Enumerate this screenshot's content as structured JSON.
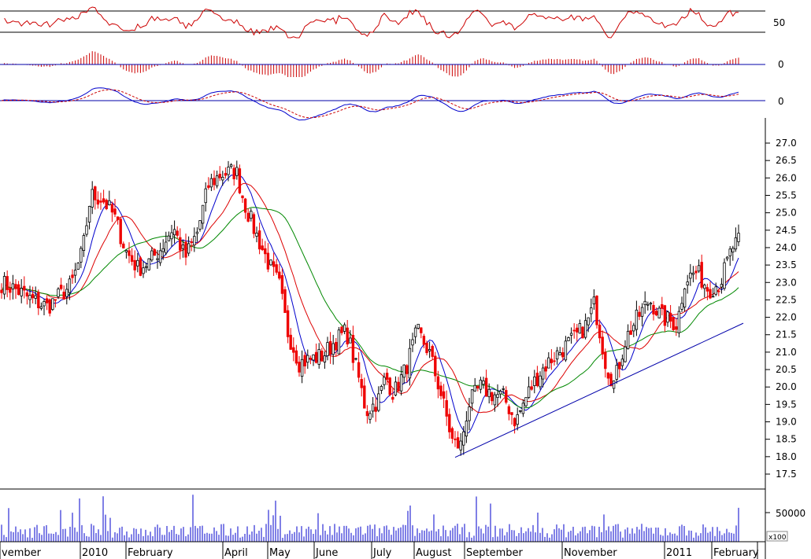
{
  "chart_data": {
    "type": "candlestick",
    "title": "",
    "price_axis": {
      "range": [
        17.2,
        27.4
      ],
      "ticks": [
        "27.0",
        "26.5",
        "26.0",
        "25.5",
        "25.0",
        "24.5",
        "24.0",
        "23.5",
        "23.0",
        "22.5",
        "22.0",
        "21.5",
        "21.0",
        "20.5",
        "20.0",
        "19.5",
        "19.0",
        "18.5",
        "18.0",
        "17.5"
      ]
    },
    "time_axis": {
      "labels": [
        "vember",
        "2010",
        "February",
        "April",
        "May",
        "June",
        "July",
        "August",
        "September",
        "November",
        "2011",
        "February"
      ]
    },
    "price_anchors": [
      {
        "x": 0,
        "y": 23.0
      },
      {
        "x": 20,
        "y": 22.8
      },
      {
        "x": 40,
        "y": 22.5
      },
      {
        "x": 60,
        "y": 22.3
      },
      {
        "x": 75,
        "y": 22.6
      },
      {
        "x": 90,
        "y": 22.9
      },
      {
        "x": 105,
        "y": 23.9
      },
      {
        "x": 115,
        "y": 25.5
      },
      {
        "x": 130,
        "y": 25.4
      },
      {
        "x": 145,
        "y": 24.9
      },
      {
        "x": 160,
        "y": 23.9
      },
      {
        "x": 175,
        "y": 23.4
      },
      {
        "x": 190,
        "y": 23.6
      },
      {
        "x": 205,
        "y": 24.0
      },
      {
        "x": 220,
        "y": 24.6
      },
      {
        "x": 235,
        "y": 23.7
      },
      {
        "x": 250,
        "y": 24.4
      },
      {
        "x": 265,
        "y": 25.8
      },
      {
        "x": 280,
        "y": 26.1
      },
      {
        "x": 300,
        "y": 26.2
      },
      {
        "x": 310,
        "y": 25.3
      },
      {
        "x": 325,
        "y": 24.4
      },
      {
        "x": 340,
        "y": 23.6
      },
      {
        "x": 355,
        "y": 22.9
      },
      {
        "x": 365,
        "y": 21.6
      },
      {
        "x": 380,
        "y": 20.7
      },
      {
        "x": 395,
        "y": 20.8
      },
      {
        "x": 410,
        "y": 20.9
      },
      {
        "x": 425,
        "y": 21.3
      },
      {
        "x": 440,
        "y": 21.6
      },
      {
        "x": 455,
        "y": 20.3
      },
      {
        "x": 465,
        "y": 19.3
      },
      {
        "x": 480,
        "y": 19.6
      },
      {
        "x": 490,
        "y": 20.3
      },
      {
        "x": 500,
        "y": 19.8
      },
      {
        "x": 515,
        "y": 20.5
      },
      {
        "x": 530,
        "y": 21.6
      },
      {
        "x": 545,
        "y": 21.0
      },
      {
        "x": 560,
        "y": 19.8
      },
      {
        "x": 575,
        "y": 18.4
      },
      {
        "x": 585,
        "y": 18.3
      },
      {
        "x": 595,
        "y": 19.5
      },
      {
        "x": 610,
        "y": 20.0
      },
      {
        "x": 625,
        "y": 19.8
      },
      {
        "x": 640,
        "y": 19.7
      },
      {
        "x": 655,
        "y": 19.0
      },
      {
        "x": 670,
        "y": 19.8
      },
      {
        "x": 685,
        "y": 20.4
      },
      {
        "x": 700,
        "y": 20.8
      },
      {
        "x": 715,
        "y": 21.1
      },
      {
        "x": 730,
        "y": 21.4
      },
      {
        "x": 745,
        "y": 21.8
      },
      {
        "x": 755,
        "y": 22.4
      },
      {
        "x": 770,
        "y": 20.6
      },
      {
        "x": 780,
        "y": 20.1
      },
      {
        "x": 795,
        "y": 21.4
      },
      {
        "x": 810,
        "y": 22.0
      },
      {
        "x": 825,
        "y": 22.5
      },
      {
        "x": 840,
        "y": 22.0
      },
      {
        "x": 860,
        "y": 21.8
      },
      {
        "x": 870,
        "y": 23.1
      },
      {
        "x": 885,
        "y": 23.3
      },
      {
        "x": 900,
        "y": 22.8
      },
      {
        "x": 915,
        "y": 23.0
      },
      {
        "x": 930,
        "y": 24.0
      },
      {
        "x": 940,
        "y": 24.2
      }
    ],
    "support_line": {
      "from": {
        "x": 578,
        "y": 17.98
      },
      "to": {
        "x": 944,
        "y": 21.83
      }
    },
    "moving_averages": [
      {
        "color": "#0000cc",
        "period": 8
      },
      {
        "color": "#dd0000",
        "period": 16
      },
      {
        "color": "#008800",
        "period": 30
      }
    ],
    "indicators": {
      "rsi_level": "50",
      "macd_hist_level": "0",
      "macd_line_level": "0"
    },
    "volume_axis": {
      "ticks": [
        "50000"
      ],
      "multiplier": "x100"
    }
  }
}
